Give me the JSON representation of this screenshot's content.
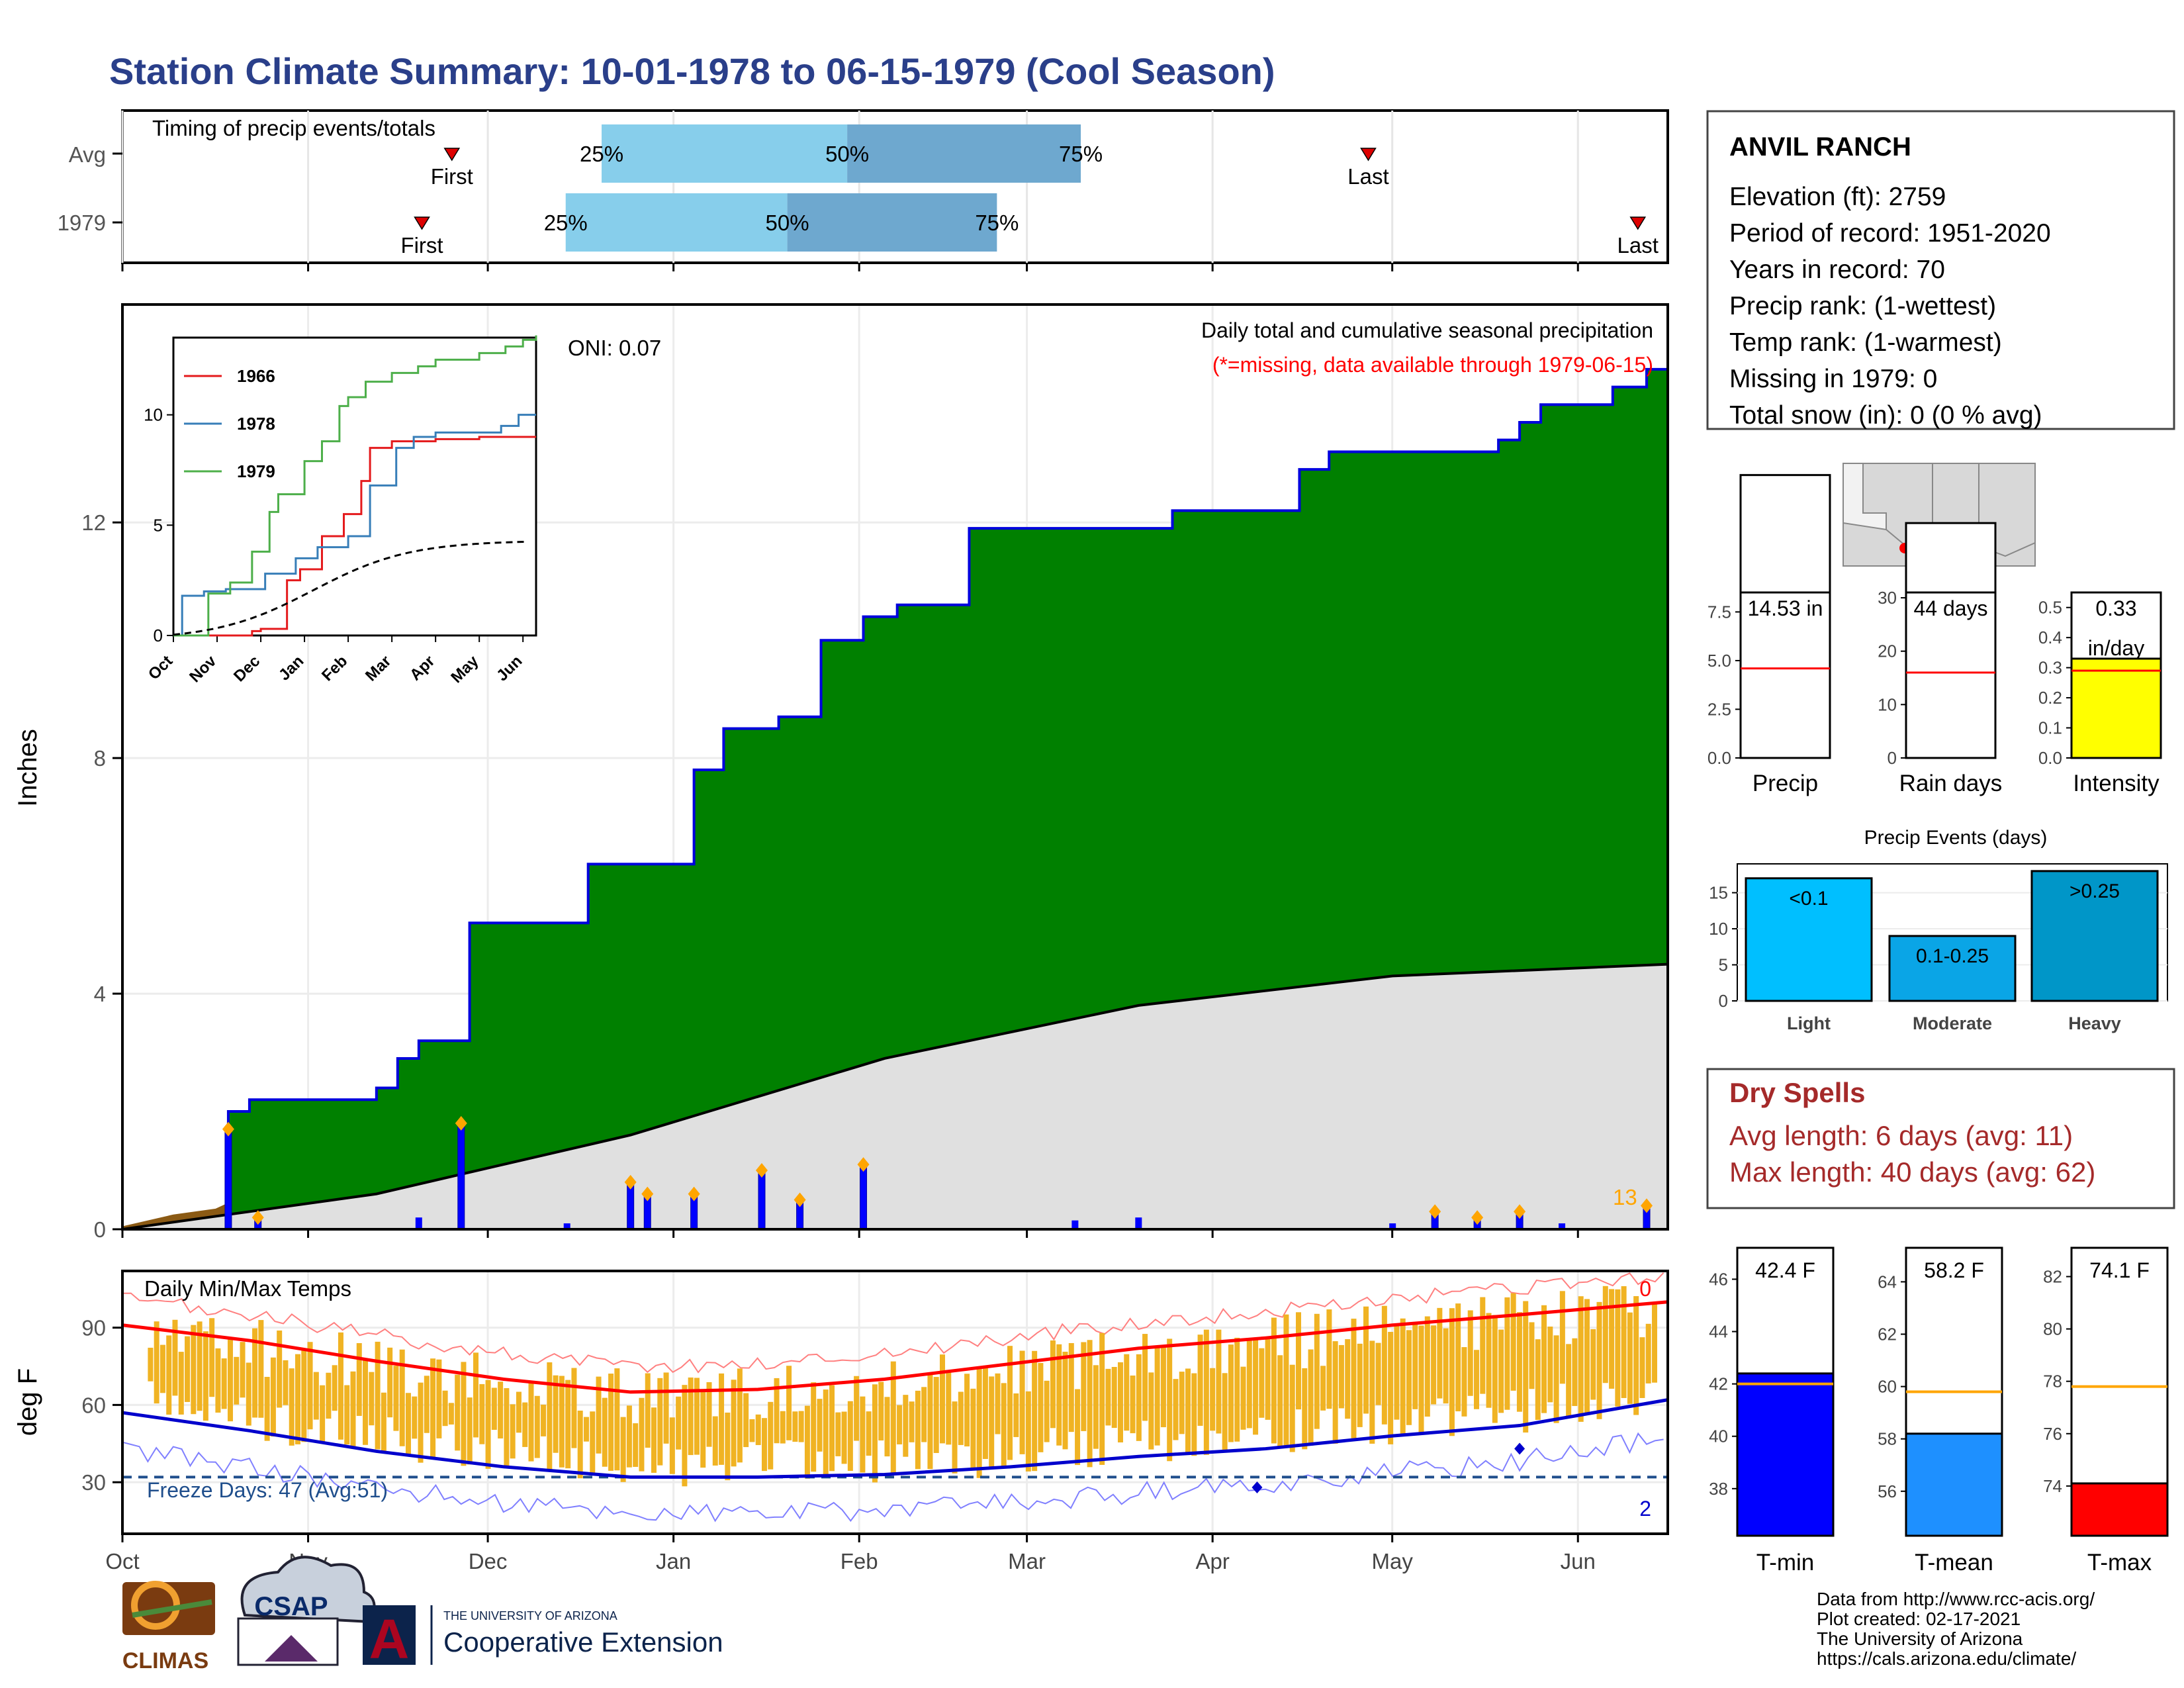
{
  "title": "Station Climate Summary: 10-01-1978 to 06-15-1979 (Cool Season)",
  "timing": {
    "heading": "Timing of precip events/totals",
    "rows": [
      {
        "label": "Avg",
        "first_label": "First",
        "last_label": "Last",
        "first": "Nov 25",
        "p25": "Dec 20",
        "p50": "Jan 30",
        "p75": "Mar 10",
        "last": "Apr 27",
        "q_labels": [
          "25%",
          "50%",
          "75%"
        ]
      },
      {
        "label": "1979",
        "first_label": "First",
        "last_label": "Last",
        "first": "Nov 20",
        "p25": "Dec 14",
        "p50": "Jan 20",
        "p75": "Feb 24",
        "last": "Jun 11",
        "q_labels": [
          "25%",
          "50%",
          "75%"
        ]
      }
    ],
    "colors": {
      "q1": "#87ceeb",
      "q2": "#6ea8cf",
      "marker": "#dd0000"
    }
  },
  "precip_panel": {
    "ylabel": "Inches",
    "yticks": [
      "0",
      "4",
      "8",
      "12"
    ],
    "oni": "ONI: 0.07",
    "header": "Daily total and cumulative seasonal precipitation",
    "missing_note": "(*=missing, data available through 1979-06-15)",
    "count_label": "13",
    "colors": {
      "cum_fill": "#008000",
      "cum_line": "#0000dd",
      "avg_fill": "#e0e0e0",
      "pre_fill": "#8b5a14",
      "bars": "#0000ff",
      "diamonds": "#ffa500"
    }
  },
  "inset": {
    "yticks": [
      "0",
      "5",
      "10"
    ],
    "xticks": [
      "Oct",
      "Nov",
      "Dec",
      "Jan",
      "Feb",
      "Mar",
      "Apr",
      "May",
      "Jun"
    ],
    "legend": [
      {
        "name": "1966",
        "color": "#e41a1c"
      },
      {
        "name": "1978",
        "color": "#377eb8"
      },
      {
        "name": "1979",
        "color": "#4daf4a"
      }
    ]
  },
  "temp_panel": {
    "ylabel": "deg F",
    "heading": "Daily Min/Max Temps",
    "yticks": [
      "30",
      "60",
      "90"
    ],
    "freeze_label": "Freeze Days: 47 (Avg:51)",
    "max_count": "0",
    "min_count": "2",
    "colors": {
      "bars": "#f0b323",
      "max": "#ff0000",
      "min": "#0000cc",
      "freeze": "#1f4e8c"
    }
  },
  "xaxis": [
    "Oct",
    "Nov",
    "Dec",
    "Jan",
    "Feb",
    "Mar",
    "Apr",
    "May",
    "Jun"
  ],
  "station": {
    "name": "ANVIL RANCH",
    "lines": [
      "Elevation (ft): 2759",
      "Period of record: 1951-2020",
      "Years in record: 70",
      "Precip rank:  (1-wettest)",
      "Temp rank:  (1-warmest)",
      "Missing in 1979: 0",
      "Total snow (in): 0 (0 % avg)"
    ]
  },
  "mini_bars": [
    {
      "label": "Precip",
      "value_text": "14.53 in",
      "value": 14.53,
      "avg": 4.6,
      "ymax": 8.5,
      "yticks": [
        "0.0",
        "2.5",
        "5.0",
        "7.5"
      ],
      "tickvals": [
        0,
        2.5,
        5,
        7.5
      ],
      "color": "#ffffff"
    },
    {
      "label": "Rain days",
      "value_text": "44 days",
      "value": 44,
      "avg": 16,
      "ymax": 31,
      "yticks": [
        "0",
        "10",
        "20",
        "30"
      ],
      "tickvals": [
        0,
        10,
        20,
        30
      ],
      "color": "#ffffff"
    },
    {
      "label": "Intensity",
      "value_text": "0.33",
      "value_text2": "in/day",
      "value": 0.33,
      "avg": 0.29,
      "ymax": 0.55,
      "yticks": [
        "0.0",
        "0.1",
        "0.2",
        "0.3",
        "0.4",
        "0.5"
      ],
      "tickvals": [
        0,
        0.1,
        0.2,
        0.3,
        0.4,
        0.5
      ],
      "color": "#ffff00"
    }
  ],
  "events": {
    "title": "Precip Events (days)",
    "yticks": [
      "0",
      "5",
      "10",
      "15"
    ],
    "bars": [
      {
        "category": "Light",
        "label": "<0.1",
        "value": 17,
        "color": "#00bfff"
      },
      {
        "category": "Moderate",
        "label": "0.1-0.25",
        "value": 9,
        "color": "#0aa5e6"
      },
      {
        "category": "Heavy",
        "label": ">0.25",
        "value": 18,
        "color": "#0096c8"
      }
    ]
  },
  "dry_spells": {
    "title": "Dry Spells",
    "avg_line": "Avg length: 6 days (avg: 11)",
    "max_line": "Max length: 40 days (avg: 62)",
    "color": "#a52a2a"
  },
  "temp_bars": [
    {
      "label": "T-min",
      "value_text": "42.4 F",
      "value": 42.4,
      "avg": 42.0,
      "ymin": 36.2,
      "ymax": 47.2,
      "yticks": [
        "38",
        "40",
        "42",
        "44",
        "46"
      ],
      "tickvals": [
        38,
        40,
        42,
        44,
        46
      ],
      "color": "#0000ff"
    },
    {
      "label": "T-mean",
      "value_text": "58.2 F",
      "value": 58.2,
      "avg": 59.8,
      "ymin": 54.3,
      "ymax": 65.3,
      "yticks": [
        "56",
        "58",
        "60",
        "62",
        "64"
      ],
      "tickvals": [
        56,
        58,
        60,
        62,
        64
      ],
      "color": "#1e90ff"
    },
    {
      "label": "T-max",
      "value_text": "74.1 F",
      "value": 74.1,
      "avg": 77.8,
      "ymin": 72.1,
      "ymax": 83.1,
      "yticks": [
        "74",
        "76",
        "78",
        "80",
        "82"
      ],
      "tickvals": [
        74,
        76,
        78,
        80,
        82
      ],
      "color": "#ff0000"
    }
  ],
  "credits": [
    "Data from http://www.rcc-acis.org/",
    "Plot created: 02-17-2021",
    "The University of Arizona",
    "https://cals.arizona.edu/climate/"
  ],
  "logos": {
    "climas": "CLIMAS",
    "csap": "CSAP",
    "ua_small": "THE UNIVERSITY OF ARIZONA",
    "ua_big": "Cooperative Extension"
  },
  "chart_data": [
    {
      "type": "area",
      "title": "Daily total and cumulative seasonal precipitation",
      "ylabel": "Inches",
      "ylim": [
        0,
        15.7
      ],
      "x": [
        "Oct",
        "Nov",
        "Dec",
        "Jan",
        "Feb",
        "Mar",
        "Apr",
        "May",
        "Jun"
      ],
      "series": [
        {
          "name": "cumulative",
          "steps": [
            [
              0,
              0
            ],
            [
              20,
              0.3
            ],
            [
              25,
              2.0
            ],
            [
              30,
              2.2
            ],
            [
              60,
              2.4
            ],
            [
              65,
              2.9
            ],
            [
              70,
              3.2
            ],
            [
              80,
              3.2
            ],
            [
              82,
              5.2
            ],
            [
              95,
              5.2
            ],
            [
              110,
              6.2
            ],
            [
              120,
              6.2
            ],
            [
              135,
              7.8
            ],
            [
              142,
              8.5
            ],
            [
              155,
              8.7
            ],
            [
              165,
              10.0
            ],
            [
              175,
              10.4
            ],
            [
              183,
              10.6
            ],
            [
              200,
              11.9
            ],
            [
              240,
              11.9
            ],
            [
              248,
              12.2
            ],
            [
              268,
              12.2
            ],
            [
              278,
              12.9
            ],
            [
              285,
              13.2
            ],
            [
              320,
              13.2
            ],
            [
              325,
              13.4
            ],
            [
              330,
              13.7
            ],
            [
              335,
              14.0
            ],
            [
              352,
              14.3
            ],
            [
              360,
              14.6
            ],
            [
              365,
              14.6
            ]
          ]
        },
        {
          "name": "average",
          "steps": [
            [
              0,
              0
            ],
            [
              60,
              0.6
            ],
            [
              120,
              1.6
            ],
            [
              180,
              2.9
            ],
            [
              240,
              3.8
            ],
            [
              300,
              4.3
            ],
            [
              365,
              4.5
            ]
          ]
        }
      ],
      "daily_events": [
        [
          25,
          1.7
        ],
        [
          32,
          0.2
        ],
        [
          80,
          1.8
        ],
        [
          120,
          0.8
        ],
        [
          124,
          0.6
        ],
        [
          135,
          0.6
        ],
        [
          151,
          1.0
        ],
        [
          160,
          0.5
        ],
        [
          175,
          1.1
        ],
        [
          310,
          0.3
        ],
        [
          320,
          0.2
        ],
        [
          330,
          0.3
        ],
        [
          360,
          0.4
        ]
      ]
    },
    {
      "type": "line",
      "title": "Daily Min/Max Temps",
      "ylabel": "deg F",
      "ylim": [
        10,
        112
      ],
      "series": [
        {
          "name": "avg max",
          "points": [
            [
              0,
              91
            ],
            [
              30,
              85
            ],
            [
              60,
              77
            ],
            [
              90,
              70
            ],
            [
              120,
              65
            ],
            [
              150,
              66
            ],
            [
              180,
              70
            ],
            [
              210,
              76
            ],
            [
              240,
              82
            ],
            [
              270,
              86
            ],
            [
              300,
              91
            ],
            [
              330,
              95
            ],
            [
              365,
              100
            ]
          ]
        },
        {
          "name": "avg min",
          "points": [
            [
              0,
              57
            ],
            [
              30,
              50
            ],
            [
              60,
              42
            ],
            [
              90,
              36
            ],
            [
              120,
              32
            ],
            [
              150,
              32
            ],
            [
              180,
              33
            ],
            [
              210,
              36
            ],
            [
              240,
              40
            ],
            [
              270,
              43
            ],
            [
              300,
              48
            ],
            [
              330,
              52
            ],
            [
              365,
              62
            ]
          ]
        }
      ]
    }
  ]
}
